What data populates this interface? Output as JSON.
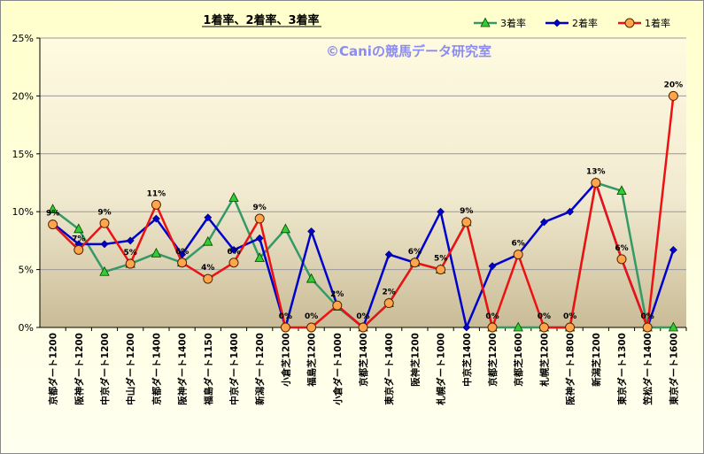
{
  "chart_data": {
    "type": "line",
    "title": "1着率、2着率、3着率",
    "watermark": "©Caniの競馬データ研究室",
    "categories": [
      "京都ダート1200",
      "阪神ダート1200",
      "中京ダート1200",
      "中山ダート1200",
      "京都ダート1400",
      "阪神ダート1400",
      "福島ダート1150",
      "中京ダート1400",
      "新潟ダート1200",
      "小倉芝1200",
      "福島芝1200",
      "小倉ダート1000",
      "京都芝1400",
      "東京ダート1400",
      "阪神芝1200",
      "札幌ダート1000",
      "中京芝1400",
      "京都芝1200",
      "京都芝1600",
      "札幌芝1200",
      "阪神ダート1800",
      "新潟芝1200",
      "東京ダート1300",
      "笠松ダート1400",
      "東京ダート1600"
    ],
    "y_ticks": [
      "0%",
      "5%",
      "10%",
      "15%",
      "20%",
      "25%"
    ],
    "ylim": [
      0,
      25
    ],
    "grid": "horizontal",
    "legend_position": "top-right",
    "series": [
      {
        "name": "3着率",
        "color": "#339966",
        "marker": "triangle",
        "values": [
          10.2,
          8.5,
          4.8,
          5.5,
          6.4,
          5.6,
          7.4,
          11.2,
          6.0,
          8.5,
          4.2,
          1.8,
          0,
          2.1,
          5.6,
          5.0,
          9.1,
          0,
          0,
          0,
          0,
          12.5,
          11.8,
          0,
          0
        ]
      },
      {
        "name": "2着率",
        "color": "#0000cc",
        "marker": "diamond",
        "values": [
          9.0,
          7.2,
          7.2,
          7.5,
          9.4,
          6.3,
          9.5,
          6.7,
          7.7,
          0,
          8.3,
          1.9,
          0,
          6.3,
          5.6,
          10.0,
          0,
          5.3,
          6.3,
          9.1,
          10.0,
          12.5,
          5.9,
          0,
          6.7
        ]
      },
      {
        "name": "1着率",
        "color": "#ee1111",
        "marker": "circle",
        "values": [
          8.9,
          6.7,
          9.0,
          5.5,
          10.6,
          5.6,
          4.2,
          5.6,
          9.4,
          0,
          0,
          1.9,
          0,
          2.1,
          5.6,
          5.0,
          9.1,
          0,
          6.3,
          0,
          0,
          12.5,
          5.9,
          0,
          20.0
        ],
        "data_labels": [
          "9%",
          "7%",
          "9%",
          "5%",
          "11%",
          "6%",
          "4%",
          "6%",
          "9%",
          "0%",
          "0%",
          "2%",
          "0%",
          "2%",
          "6%",
          "5%",
          "9%",
          "0%",
          "6%",
          "0%",
          "0%",
          "13%",
          "6%",
          "0%",
          "20%"
        ]
      }
    ]
  }
}
